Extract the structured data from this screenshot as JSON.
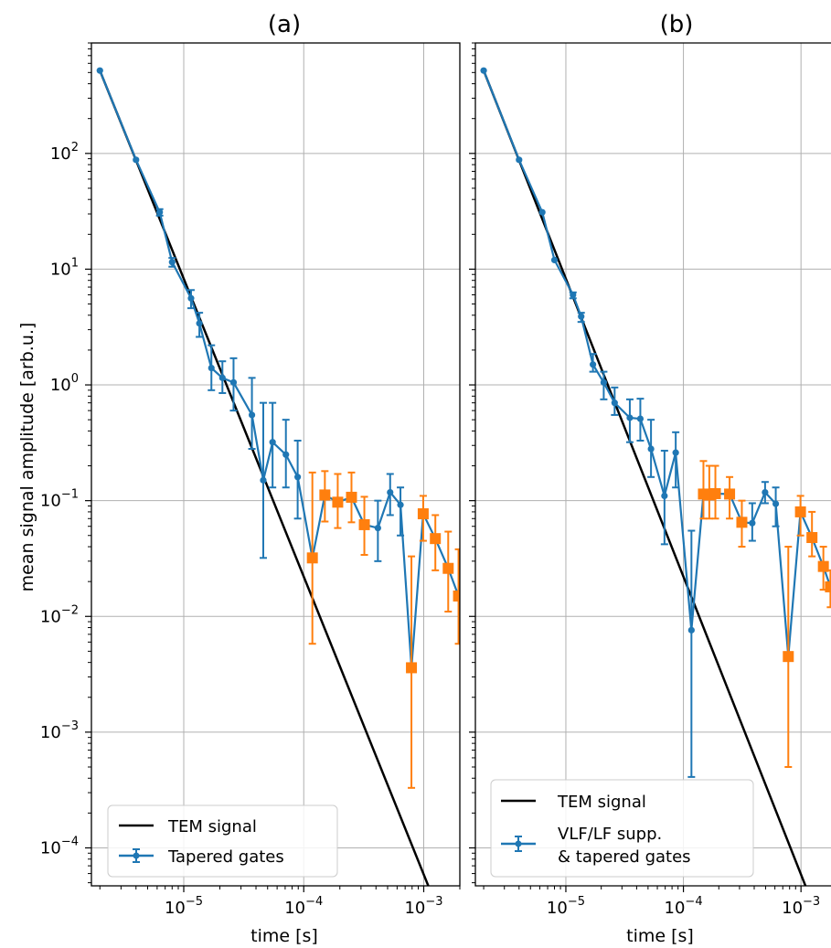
{
  "shared": {
    "ylabel": "mean signal amplitude [arb.u.]",
    "xlabel": "time [s]",
    "x_ticks": [
      {
        "value": 1e-05,
        "base": "10",
        "exp": "−5"
      },
      {
        "value": 0.0001,
        "base": "10",
        "exp": "−4"
      },
      {
        "value": 0.001,
        "base": "10",
        "exp": "−3"
      }
    ],
    "y_ticks": [
      {
        "value": 0.0001,
        "base": "10",
        "exp": "−4"
      },
      {
        "value": 0.001,
        "base": "10",
        "exp": "−3"
      },
      {
        "value": 0.01,
        "base": "10",
        "exp": "−2"
      },
      {
        "value": 0.1,
        "base": "10",
        "exp": "−1"
      },
      {
        "value": 1,
        "base": "10",
        "exp": "0"
      },
      {
        "value": 10,
        "base": "10",
        "exp": "1"
      },
      {
        "value": 100,
        "base": "10",
        "exp": "2"
      }
    ],
    "colors": {
      "tem": "#000000",
      "blue": "#1f77b4",
      "orange": "#ff7f0e",
      "grid": "#b0b0b0"
    }
  },
  "chart_data": [
    {
      "type": "line",
      "title": "(a)",
      "xscale": "log",
      "yscale": "log",
      "xlim": [
        1.7e-06,
        0.002
      ],
      "ylim": [
        4.7e-05,
        900
      ],
      "grid": true,
      "legend_position": "lower-left",
      "series": [
        {
          "name": "TEM signal",
          "kind": "line",
          "x": [
            2e-06,
            0.002
          ],
          "y": [
            520,
            9.9e-06
          ]
        },
        {
          "name": "Tapered gates",
          "kind": "errorbar",
          "color": "blue",
          "points": [
            {
              "x": 2e-06,
              "y": 520
            },
            {
              "x": 4e-06,
              "y": 88
            },
            {
              "x": 6.3e-06,
              "y": 31,
              "lo": 29,
              "hi": 33
            },
            {
              "x": 8e-06,
              "y": 11.5,
              "lo": 10.5,
              "hi": 12.5
            },
            {
              "x": 1.15e-05,
              "y": 5.6,
              "lo": 4.6,
              "hi": 6.6
            },
            {
              "x": 1.35e-05,
              "y": 3.4,
              "lo": 2.6,
              "hi": 4.2
            },
            {
              "x": 1.7e-05,
              "y": 1.4,
              "lo": 0.9,
              "hi": 2.2
            },
            {
              "x": 2.1e-05,
              "y": 1.15,
              "lo": 0.85,
              "hi": 1.6
            },
            {
              "x": 2.6e-05,
              "y": 1.05,
              "lo": 0.6,
              "hi": 1.7
            },
            {
              "x": 3.7e-05,
              "y": 0.55,
              "lo": 0.28,
              "hi": 1.15
            },
            {
              "x": 4.6e-05,
              "y": 0.15,
              "lo": 0.032,
              "hi": 0.7
            },
            {
              "x": 5.5e-05,
              "y": 0.32,
              "lo": 0.13,
              "hi": 0.7
            },
            {
              "x": 7.1e-05,
              "y": 0.25,
              "lo": 0.13,
              "hi": 0.5
            },
            {
              "x": 8.9e-05,
              "y": 0.16,
              "lo": 0.07,
              "hi": 0.33
            },
            {
              "x": 0.000415,
              "y": 0.058,
              "lo": 0.03,
              "hi": 0.1
            },
            {
              "x": 0.000525,
              "y": 0.118,
              "lo": 0.075,
              "hi": 0.17
            },
            {
              "x": 0.00064,
              "y": 0.092,
              "lo": 0.05,
              "hi": 0.13
            }
          ]
        },
        {
          "name": "",
          "kind": "errorbar",
          "color": "orange",
          "points": [
            {
              "x": 0.000118,
              "y": 0.032,
              "lo": 0.0058,
              "hi": 0.175
            },
            {
              "x": 0.00015,
              "y": 0.112,
              "lo": 0.066,
              "hi": 0.18
            },
            {
              "x": 0.000192,
              "y": 0.097,
              "lo": 0.058,
              "hi": 0.17
            },
            {
              "x": 0.00025,
              "y": 0.107,
              "lo": 0.065,
              "hi": 0.175
            },
            {
              "x": 0.00032,
              "y": 0.062,
              "lo": 0.034,
              "hi": 0.108
            },
            {
              "x": 0.00079,
              "y": 0.0036,
              "lo": 0.00033,
              "hi": 0.033
            },
            {
              "x": 0.00099,
              "y": 0.077,
              "lo": 0.045,
              "hi": 0.11
            },
            {
              "x": 0.00125,
              "y": 0.047,
              "lo": 0.025,
              "hi": 0.075
            },
            {
              "x": 0.0016,
              "y": 0.026,
              "lo": 0.011,
              "hi": 0.054
            },
            {
              "x": 0.00195,
              "y": 0.015,
              "lo": 0.0058,
              "hi": 0.038
            }
          ]
        }
      ]
    },
    {
      "type": "line",
      "title": "(b)",
      "xscale": "log",
      "yscale": "log",
      "xlim": [
        1.7e-06,
        0.0018
      ],
      "ylim": [
        4.7e-05,
        900
      ],
      "grid": true,
      "legend_position": "lower-left",
      "series": [
        {
          "name": "TEM signal",
          "kind": "line",
          "x": [
            2e-06,
            0.002
          ],
          "y": [
            520,
            9.9e-06
          ]
        },
        {
          "name": "VLF/LF supp.|& tapered gates",
          "kind": "errorbar",
          "color": "blue",
          "points": [
            {
              "x": 2e-06,
              "y": 520
            },
            {
              "x": 4e-06,
              "y": 88
            },
            {
              "x": 6.3e-06,
              "y": 31
            },
            {
              "x": 8e-06,
              "y": 12
            },
            {
              "x": 1.15e-05,
              "y": 6,
              "lo": 5.6,
              "hi": 6.3
            },
            {
              "x": 1.35e-05,
              "y": 3.9,
              "lo": 3.5,
              "hi": 4.2
            },
            {
              "x": 1.7e-05,
              "y": 1.5,
              "lo": 1.3,
              "hi": 1.85
            },
            {
              "x": 2.1e-05,
              "y": 1.05,
              "lo": 0.75,
              "hi": 1.3
            },
            {
              "x": 2.6e-05,
              "y": 0.7,
              "lo": 0.55,
              "hi": 0.95
            },
            {
              "x": 3.5e-05,
              "y": 0.52,
              "lo": 0.32,
              "hi": 0.75
            },
            {
              "x": 4.3e-05,
              "y": 0.51,
              "lo": 0.33,
              "hi": 0.76
            },
            {
              "x": 5.3e-05,
              "y": 0.28,
              "lo": 0.16,
              "hi": 0.5
            },
            {
              "x": 6.9e-05,
              "y": 0.11,
              "lo": 0.042,
              "hi": 0.27
            },
            {
              "x": 8.6e-05,
              "y": 0.26,
              "lo": 0.13,
              "hi": 0.39
            },
            {
              "x": 0.000117,
              "y": 0.0076,
              "lo": 0.00041,
              "hi": 0.055
            },
            {
              "x": 0.000385,
              "y": 0.064,
              "lo": 0.045,
              "hi": 0.095
            },
            {
              "x": 0.000495,
              "y": 0.118,
              "lo": 0.095,
              "hi": 0.145
            },
            {
              "x": 0.00061,
              "y": 0.094,
              "lo": 0.06,
              "hi": 0.13
            }
          ]
        },
        {
          "name": "",
          "kind": "errorbar",
          "color": "orange",
          "points": [
            {
              "x": 0.000148,
              "y": 0.114,
              "lo": 0.07,
              "hi": 0.22
            },
            {
              "x": 0.000166,
              "y": 0.112,
              "lo": 0.07,
              "hi": 0.2
            },
            {
              "x": 0.000187,
              "y": 0.115,
              "lo": 0.07,
              "hi": 0.2
            },
            {
              "x": 0.000247,
              "y": 0.114,
              "lo": 0.07,
              "hi": 0.16
            },
            {
              "x": 0.000314,
              "y": 0.065,
              "lo": 0.04,
              "hi": 0.1
            },
            {
              "x": 0.00078,
              "y": 0.0045,
              "lo": 0.0005,
              "hi": 0.04
            },
            {
              "x": 0.00099,
              "y": 0.08,
              "lo": 0.05,
              "hi": 0.11
            },
            {
              "x": 0.00124,
              "y": 0.048,
              "lo": 0.033,
              "hi": 0.08
            },
            {
              "x": 0.00155,
              "y": 0.027,
              "lo": 0.017,
              "hi": 0.04
            },
            {
              "x": 0.00178,
              "y": 0.018,
              "lo": 0.012,
              "hi": 0.025
            }
          ]
        }
      ]
    }
  ]
}
